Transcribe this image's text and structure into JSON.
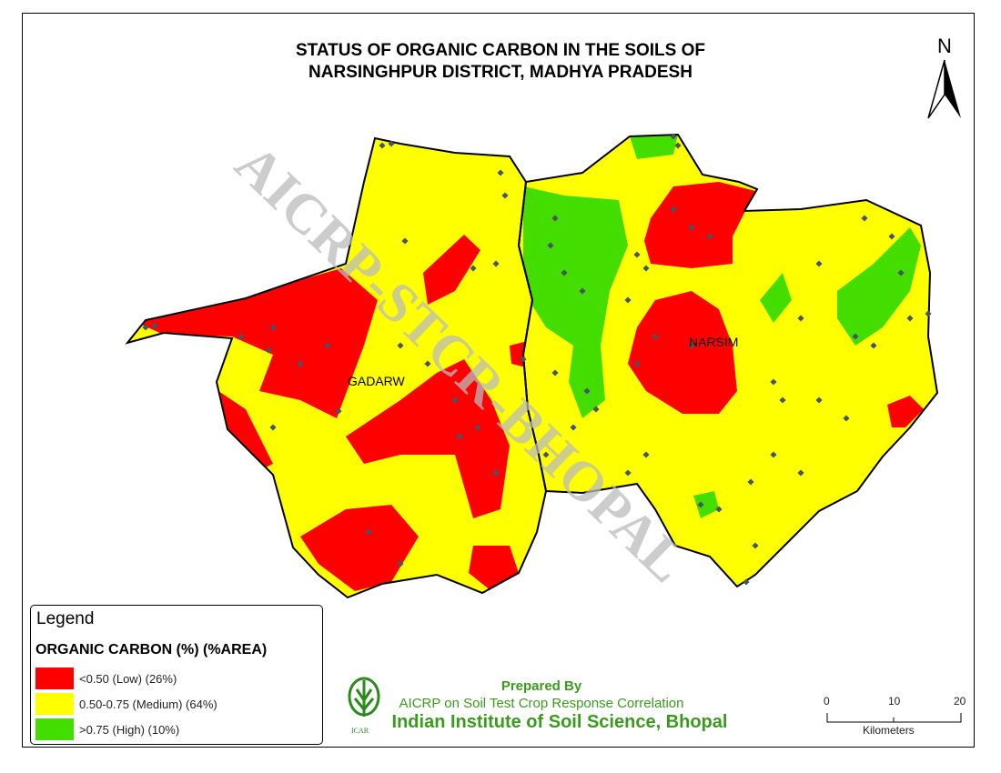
{
  "title": {
    "line1": "STATUS OF ORGANIC CARBON IN THE SOILS OF",
    "line2": "NARSINGHPUR DISTRICT, MADHYA PRADESH"
  },
  "north_arrow": {
    "label": "N"
  },
  "watermark": "AICRP-STCR-BHOPAL",
  "map_labels": {
    "west": "GADARW",
    "east": "NARSIM"
  },
  "legend": {
    "title": "Legend",
    "heading": "ORGANIC CARBON (%) (%AREA)",
    "items": [
      {
        "label": "<0.50 (Low) (26%)",
        "color": "#ff0000"
      },
      {
        "label": "0.50-0.75 (Medium) (64%)",
        "color": "#ffff00"
      },
      {
        "label": ">0.75 (High) (10%)",
        "color": "#44dd00"
      }
    ]
  },
  "credits": {
    "line1": "Prepared By",
    "line2": "AICRP on Soil Test Crop Response Correlation",
    "line3": "Indian Institute of Soil Science, Bhopal",
    "logo_text": "ICAR"
  },
  "scale_bar": {
    "ticks": [
      "0",
      "10",
      "20"
    ],
    "unit": "Kilometers"
  }
}
